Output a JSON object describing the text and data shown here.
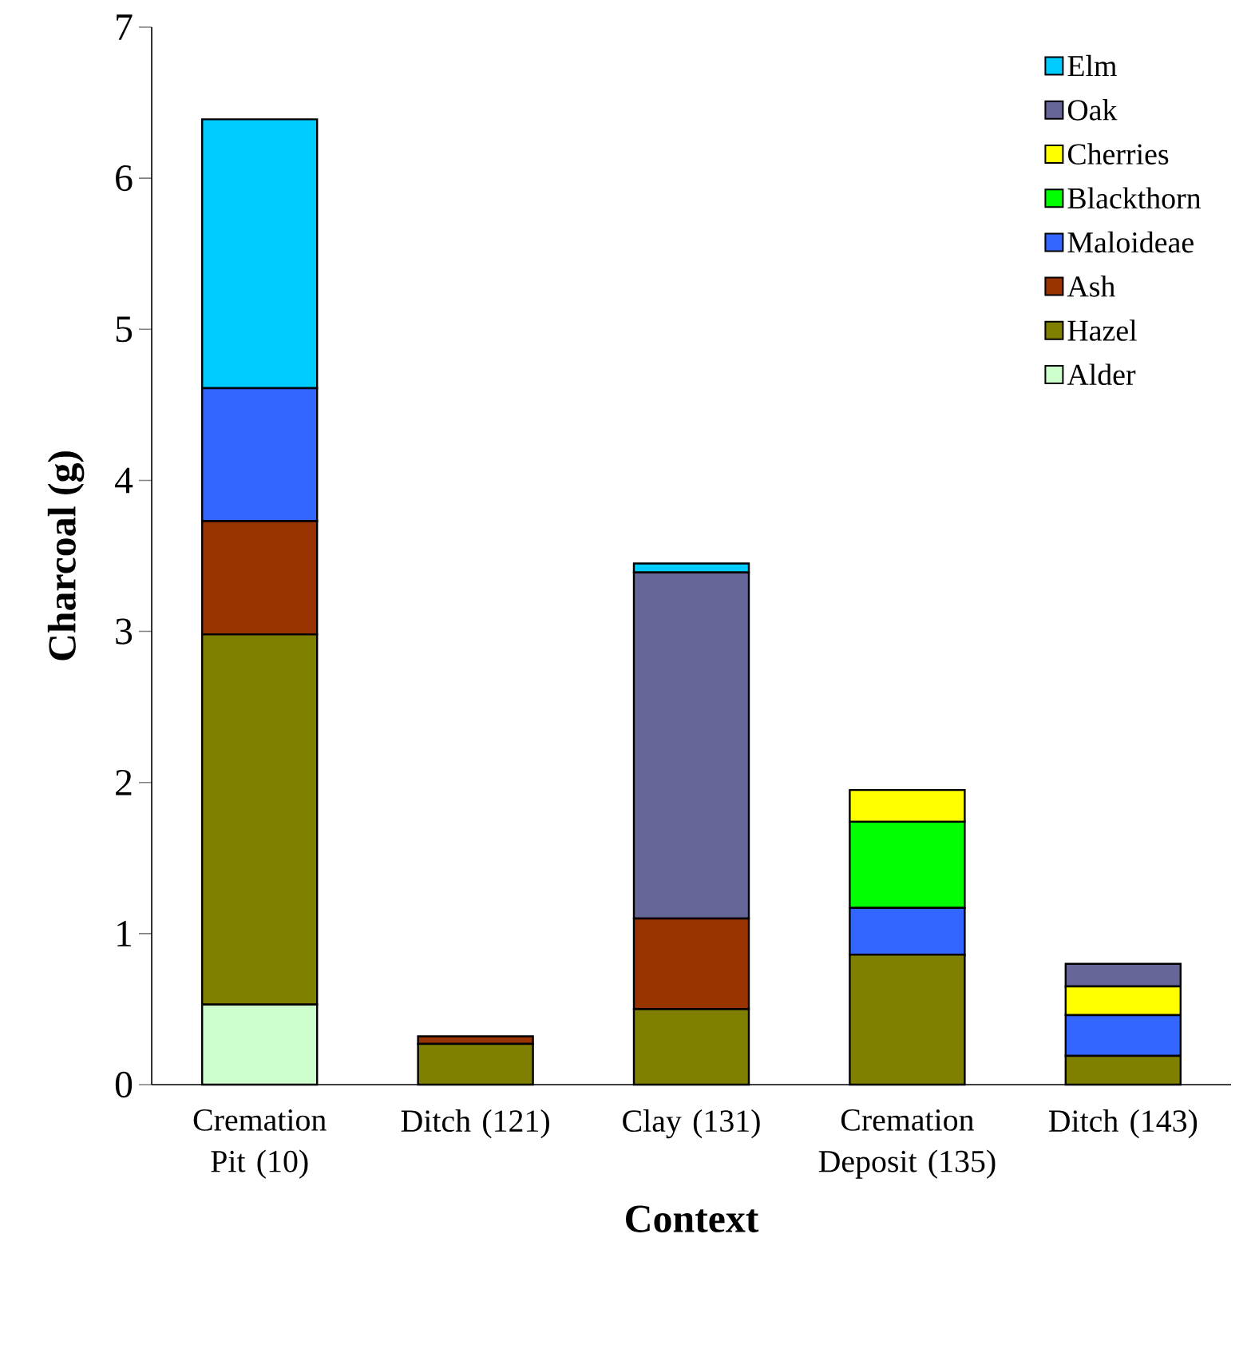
{
  "chart_data": {
    "type": "bar",
    "stacked": true,
    "xlabel": "Context",
    "ylabel": "Charcoal (g)",
    "categories": [
      "Cremation Pit (10)",
      "Ditch (121)",
      "Clay (131)",
      "Cremation Deposit (135)",
      "Ditch (143)"
    ],
    "series": [
      {
        "name": "Alder",
        "color": "#ccffcc",
        "values": [
          0.53,
          null,
          null,
          null,
          null
        ]
      },
      {
        "name": "Hazel",
        "color": "#808000",
        "values": [
          2.45,
          0.27,
          0.5,
          0.86,
          0.19
        ]
      },
      {
        "name": "Ash",
        "color": "#993300",
        "values": [
          0.75,
          0.05,
          0.6,
          null,
          null
        ]
      },
      {
        "name": "Maloideae",
        "color": "#3366ff",
        "values": [
          0.88,
          null,
          null,
          0.31,
          0.27
        ]
      },
      {
        "name": "Blackthorn",
        "color": "#00ff00",
        "values": [
          null,
          null,
          null,
          0.57,
          null
        ]
      },
      {
        "name": "Cherries",
        "color": "#ffff00",
        "values": [
          null,
          null,
          null,
          0.21,
          0.19
        ]
      },
      {
        "name": "Oak",
        "color": "#666699",
        "values": [
          null,
          null,
          2.29,
          null,
          0.15
        ]
      },
      {
        "name": "Elm",
        "color": "#00ccff",
        "values": [
          1.78,
          null,
          0.06,
          null,
          null
        ]
      }
    ],
    "ylim": [
      0,
      7
    ],
    "yticks": [
      0,
      1,
      2,
      3,
      4,
      5,
      6,
      7
    ],
    "grid": false,
    "legend": "top right"
  }
}
